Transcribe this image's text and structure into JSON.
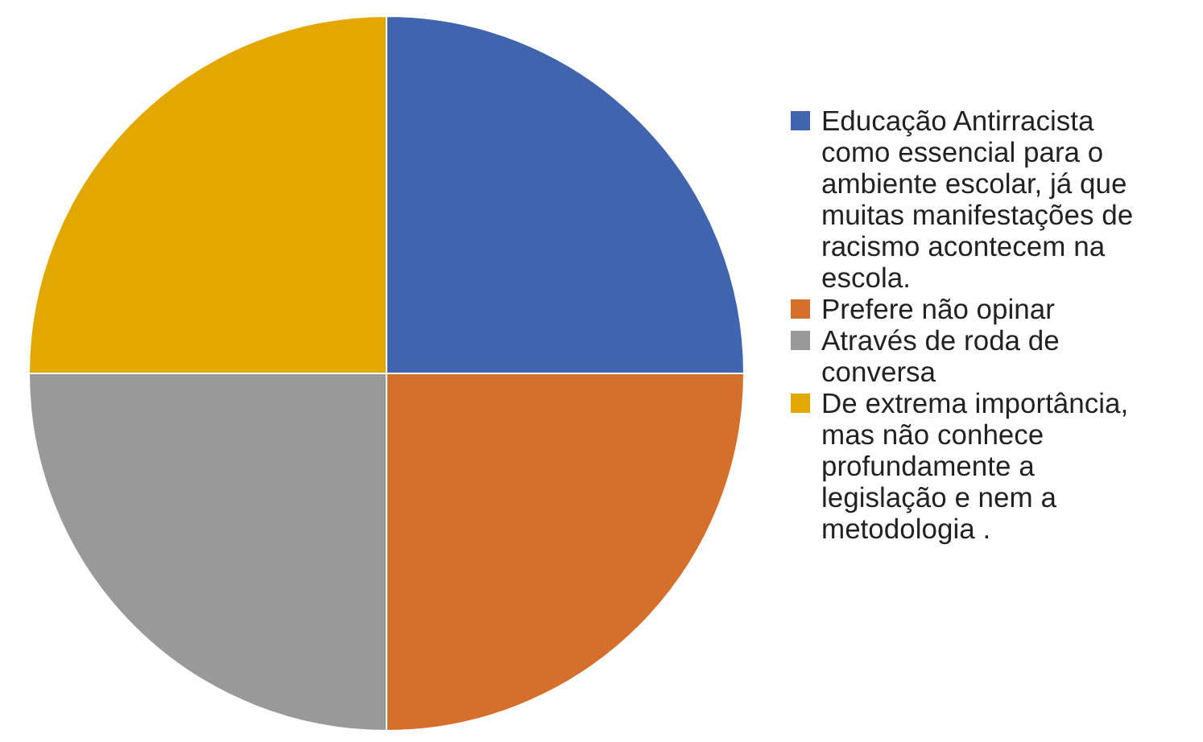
{
  "chart_data": {
    "type": "pie",
    "categories": [
      "Educação Antirracista como essencial para o ambiente escolar, já que muitas manifestações de racismo acontecem na escola.",
      "Prefere não opinar",
      "Através de roda de conversa",
      "De extrema importância, mas não conhece profundamente a legislação e nem a metodologia ."
    ],
    "values": [
      25,
      25,
      25,
      25
    ],
    "colors": [
      "#4064ad",
      "#d4702c",
      "#999999",
      "#e3a800"
    ],
    "legend": "right"
  }
}
